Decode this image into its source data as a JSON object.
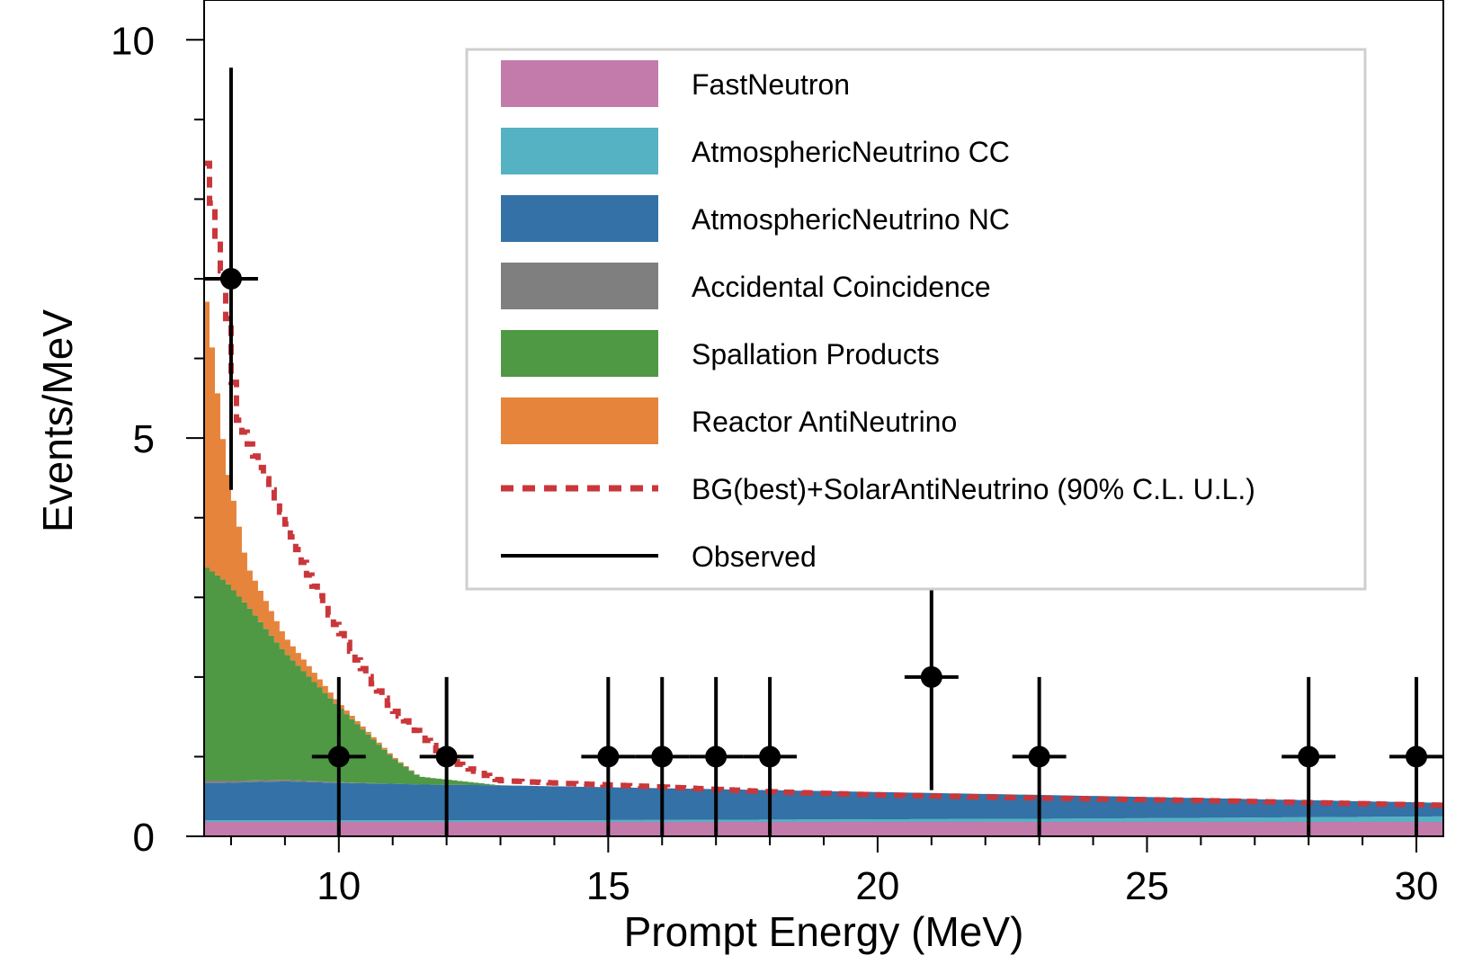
{
  "chart_data": {
    "type": "bar",
    "xlabel": "Prompt Energy (MeV)",
    "ylabel": "Events/MeV",
    "xlim": [
      7.5,
      30.5
    ],
    "ylim": [
      0,
      10.5
    ],
    "x_ticks": [
      "10",
      "15",
      "20",
      "25",
      "30"
    ],
    "y_ticks": [
      "0",
      "5",
      "10"
    ],
    "legend_position": "top-right",
    "legend": [
      {
        "label": "FastNeutron",
        "kind": "fill",
        "color": "#c27bab"
      },
      {
        "label": "AtmosphericNeutrino CC",
        "kind": "fill",
        "color": "#55b2c3"
      },
      {
        "label": "AtmosphericNeutrino NC",
        "kind": "fill",
        "color": "#3471a6"
      },
      {
        "label": "Accidental Coincidence",
        "kind": "fill",
        "color": "#7f7f7f"
      },
      {
        "label": "Spallation Products",
        "kind": "fill",
        "color": "#4f9844"
      },
      {
        "label": "Reactor AntiNeutrino",
        "kind": "fill",
        "color": "#e6843c"
      },
      {
        "label": "BG(best)+SolarAntiNeutrino (90% C.L. U.L.)",
        "kind": "dashed",
        "color": "#c9373b"
      },
      {
        "label": "Observed",
        "kind": "line",
        "color": "#000000"
      }
    ],
    "stack_colors": {
      "fast_neutron": "#c27bab",
      "atm_cc": "#55b2c3",
      "atm_nc": "#3471a6",
      "accidental": "#7f7f7f",
      "spallation": "#4f9844",
      "reactor": "#e6843c"
    },
    "background_stack": {
      "energy": [
        7.5,
        7.9,
        8.3,
        9.0,
        10.0,
        11.0,
        11.5,
        13.0,
        18.0,
        23.0,
        30.5
      ],
      "fast_neutron": [
        0.18,
        0.18,
        0.18,
        0.18,
        0.18,
        0.18,
        0.18,
        0.18,
        0.18,
        0.18,
        0.18
      ],
      "atm_cc": [
        0.02,
        0.02,
        0.02,
        0.02,
        0.02,
        0.02,
        0.02,
        0.02,
        0.03,
        0.04,
        0.07
      ],
      "atm_nc": [
        0.47,
        0.47,
        0.48,
        0.49,
        0.47,
        0.46,
        0.45,
        0.44,
        0.37,
        0.3,
        0.17
      ],
      "accidental": [
        0.03,
        0.03,
        0.02,
        0.02,
        0.01,
        0.0,
        0.0,
        0.0,
        0.0,
        0.0,
        0.0
      ],
      "spallation": [
        2.7,
        2.5,
        2.2,
        1.6,
        0.95,
        0.33,
        0.1,
        0.0,
        0.0,
        0.0,
        0.0
      ],
      "reactor": [
        3.6,
        1.5,
        0.5,
        0.2,
        0.05,
        0.02,
        0.0,
        0.0,
        0.0,
        0.0,
        0.0
      ]
    },
    "upper_limit_curve": {
      "x": [
        7.5,
        7.7,
        7.9,
        8.1,
        8.5,
        9.0,
        9.5,
        10.0,
        10.5,
        11.0,
        11.5,
        12.0,
        12.5,
        13.0,
        14.0,
        16.0,
        18.0,
        20.0,
        23.0,
        26.0,
        30.5
      ],
      "y": [
        8.7,
        7.7,
        6.9,
        5.3,
        4.7,
        4.0,
        3.2,
        2.6,
        2.05,
        1.6,
        1.3,
        0.98,
        0.83,
        0.7,
        0.67,
        0.62,
        0.56,
        0.52,
        0.48,
        0.45,
        0.39
      ]
    },
    "observed": [
      {
        "x": 8,
        "y": 7,
        "xerr": 0.5,
        "ylow": 4.35,
        "yhigh": 9.65
      },
      {
        "x": 10,
        "y": 1,
        "xerr": 0.5,
        "ylow": 0,
        "yhigh": 2
      },
      {
        "x": 12,
        "y": 1,
        "xerr": 0.5,
        "ylow": 0,
        "yhigh": 2
      },
      {
        "x": 15,
        "y": 1,
        "xerr": 0.5,
        "ylow": 0,
        "yhigh": 2
      },
      {
        "x": 16,
        "y": 1,
        "xerr": 0.5,
        "ylow": 0,
        "yhigh": 2
      },
      {
        "x": 17,
        "y": 1,
        "xerr": 0.5,
        "ylow": 0,
        "yhigh": 2
      },
      {
        "x": 18,
        "y": 1,
        "xerr": 0.5,
        "ylow": 0,
        "yhigh": 2
      },
      {
        "x": 21,
        "y": 2,
        "xerr": 0.5,
        "ylow": 0.58,
        "yhigh": 3.42
      },
      {
        "x": 23,
        "y": 1,
        "xerr": 0.5,
        "ylow": 0,
        "yhigh": 2
      },
      {
        "x": 28,
        "y": 1,
        "xerr": 0.5,
        "ylow": 0,
        "yhigh": 2
      },
      {
        "x": 30,
        "y": 1,
        "xerr": 0.5,
        "ylow": 0,
        "yhigh": 2
      }
    ]
  }
}
